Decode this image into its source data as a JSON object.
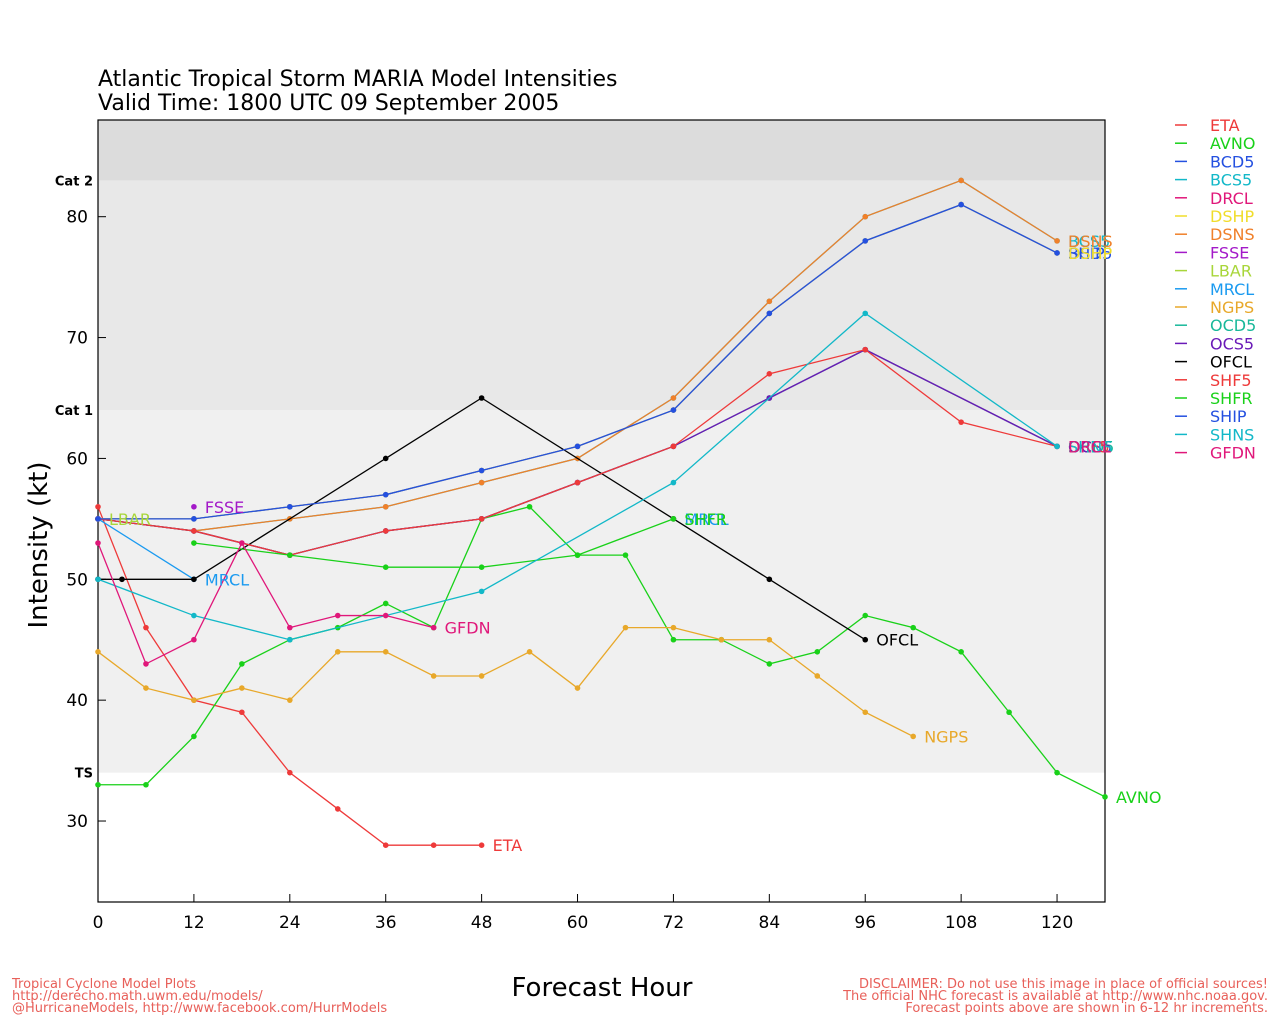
{
  "chart_data": {
    "type": "line",
    "title": [
      "Atlantic Tropical Storm MARIA Model Intensities",
      "Valid Time: 1800 UTC 09 September 2005"
    ],
    "xlabel": "Forecast Hour",
    "ylabel": "Intensity (kt)",
    "xlim": [
      0,
      126
    ],
    "ylim": [
      23.3,
      88
    ],
    "xticks": [
      0,
      12,
      24,
      36,
      48,
      60,
      72,
      84,
      96,
      108,
      120
    ],
    "yticks": [
      30,
      40,
      50,
      60,
      70,
      80
    ],
    "bands": [
      {
        "label": "TS",
        "from": 34,
        "to": 64,
        "color": "#f0f0f0"
      },
      {
        "label": "Cat 1",
        "from": 64,
        "to": 83,
        "color": "#e8e8e8"
      },
      {
        "label": "Cat 2",
        "from": 83,
        "to": 88,
        "color": "#dcdcdc"
      }
    ],
    "legend_position": "right",
    "series": [
      {
        "name": "ETA",
        "color": "#ee3a3a",
        "end_label": "ETA",
        "points": [
          [
            0,
            56
          ],
          [
            6,
            46
          ],
          [
            12,
            40
          ],
          [
            18,
            39
          ],
          [
            24,
            34
          ],
          [
            30,
            31
          ],
          [
            36,
            28
          ],
          [
            42,
            28
          ],
          [
            48,
            28
          ]
        ]
      },
      {
        "name": "AVNO",
        "color": "#19d119",
        "end_label": "AVNO",
        "points": [
          [
            0,
            33
          ],
          [
            6,
            33
          ],
          [
            12,
            37
          ],
          [
            18,
            43
          ],
          [
            24,
            45
          ],
          [
            30,
            46
          ],
          [
            36,
            48
          ],
          [
            42,
            46
          ],
          [
            48,
            55
          ],
          [
            54,
            56
          ],
          [
            60,
            52
          ],
          [
            66,
            52
          ],
          [
            72,
            45
          ],
          [
            78,
            45
          ],
          [
            84,
            43
          ],
          [
            90,
            44
          ],
          [
            96,
            47
          ],
          [
            102,
            46
          ],
          [
            108,
            44
          ],
          [
            114,
            39
          ],
          [
            120,
            34
          ],
          [
            126,
            32
          ]
        ]
      },
      {
        "name": "BCD5",
        "color": "#2450e0",
        "end_label": "BCD5",
        "points": [
          [
            0,
            55
          ],
          [
            12,
            55
          ],
          [
            24,
            56
          ],
          [
            36,
            57
          ],
          [
            48,
            59
          ],
          [
            60,
            61
          ],
          [
            72,
            64
          ],
          [
            84,
            72
          ],
          [
            96,
            78
          ],
          [
            108,
            81
          ],
          [
            120,
            77
          ]
        ]
      },
      {
        "name": "BCS5",
        "color": "#12b8c8",
        "end_label": "BCS5",
        "points": [
          [
            0,
            55
          ],
          [
            12,
            54
          ],
          [
            24,
            55
          ],
          [
            36,
            56
          ],
          [
            48,
            58
          ],
          [
            60,
            60
          ],
          [
            72,
            65
          ],
          [
            84,
            73
          ],
          [
            96,
            80
          ],
          [
            108,
            83
          ],
          [
            120,
            78
          ]
        ]
      },
      {
        "name": "DRCL",
        "color": "#e0177a",
        "end_label": "DRCL",
        "points": [
          [
            0,
            55
          ],
          [
            12,
            54
          ],
          [
            24,
            52
          ],
          [
            36,
            54
          ],
          [
            48,
            55
          ],
          [
            60,
            58
          ],
          [
            72,
            61
          ],
          [
            84,
            65
          ],
          [
            96,
            69
          ],
          [
            120,
            61
          ]
        ]
      },
      {
        "name": "DSHP",
        "color": "#f0dd2a",
        "end_label": "DSHP",
        "points": [
          [
            0,
            55
          ],
          [
            12,
            55
          ],
          [
            24,
            56
          ],
          [
            36,
            57
          ],
          [
            48,
            59
          ],
          [
            60,
            61
          ],
          [
            72,
            64
          ],
          [
            84,
            72
          ],
          [
            96,
            78
          ],
          [
            108,
            81
          ],
          [
            120,
            77
          ]
        ]
      },
      {
        "name": "DSNS",
        "color": "#f0802a",
        "end_label": "DSNS",
        "points": [
          [
            0,
            55
          ],
          [
            12,
            54
          ],
          [
            24,
            55
          ],
          [
            36,
            56
          ],
          [
            48,
            58
          ],
          [
            60,
            60
          ],
          [
            72,
            65
          ],
          [
            84,
            73
          ],
          [
            96,
            80
          ],
          [
            108,
            83
          ],
          [
            120,
            78
          ]
        ]
      },
      {
        "name": "FSSE",
        "color": "#a319c8",
        "end_label": "FSSE",
        "points": [
          [
            12,
            56
          ]
        ]
      },
      {
        "name": "LBAR",
        "color": "#a8d63a",
        "end_label": "LBAR",
        "points": [
          [
            0,
            55
          ]
        ]
      },
      {
        "name": "MRCL",
        "color": "#1a9af0",
        "end_label": "MRCL",
        "points": [
          [
            0,
            55
          ],
          [
            12,
            50
          ]
        ]
      },
      {
        "name": "NGPS",
        "color": "#e8a82a",
        "end_label": "NGPS",
        "points": [
          [
            0,
            44
          ],
          [
            6,
            41
          ],
          [
            12,
            40
          ],
          [
            18,
            41
          ],
          [
            24,
            40
          ],
          [
            30,
            44
          ],
          [
            36,
            44
          ],
          [
            42,
            42
          ],
          [
            48,
            42
          ],
          [
            54,
            44
          ],
          [
            60,
            41
          ],
          [
            66,
            46
          ],
          [
            72,
            46
          ],
          [
            78,
            45
          ],
          [
            84,
            45
          ],
          [
            90,
            42
          ],
          [
            96,
            39
          ],
          [
            102,
            37
          ]
        ]
      },
      {
        "name": "OCD5",
        "color": "#18b89a",
        "end_label": "OCD5",
        "points": [
          [
            0,
            55
          ],
          [
            12,
            54
          ],
          [
            24,
            52
          ],
          [
            36,
            54
          ],
          [
            48,
            55
          ],
          [
            60,
            58
          ],
          [
            72,
            61
          ],
          [
            84,
            65
          ],
          [
            96,
            69
          ],
          [
            120,
            61
          ]
        ]
      },
      {
        "name": "OCS5",
        "color": "#6a1ab8",
        "end_label": "OCS5",
        "points": [
          [
            0,
            55
          ],
          [
            12,
            54
          ],
          [
            24,
            52
          ],
          [
            36,
            54
          ],
          [
            48,
            55
          ],
          [
            60,
            58
          ],
          [
            72,
            61
          ],
          [
            84,
            65
          ],
          [
            96,
            69
          ],
          [
            120,
            61
          ]
        ]
      },
      {
        "name": "OFCL",
        "color": "#000000",
        "end_label": "OFCL",
        "points": [
          [
            0,
            50
          ],
          [
            3,
            50
          ],
          [
            12,
            50
          ],
          [
            36,
            60
          ],
          [
            48,
            65
          ],
          [
            72,
            55
          ],
          [
            84,
            50
          ],
          [
            96,
            45
          ]
        ]
      },
      {
        "name": "SHF5",
        "color": "#ee3a3a",
        "end_label": "SHF5",
        "points": [
          [
            0,
            55
          ],
          [
            12,
            54
          ],
          [
            24,
            52
          ],
          [
            36,
            54
          ],
          [
            48,
            55
          ],
          [
            60,
            58
          ],
          [
            72,
            61
          ],
          [
            84,
            67
          ],
          [
            96,
            69
          ],
          [
            108,
            63
          ],
          [
            120,
            61
          ]
        ]
      },
      {
        "name": "SHFR",
        "color": "#19d119",
        "end_label": "SHFR",
        "points": [
          [
            12,
            53
          ],
          [
            24,
            52
          ],
          [
            36,
            51
          ],
          [
            48,
            51
          ],
          [
            60,
            52
          ],
          [
            72,
            55
          ]
        ]
      },
      {
        "name": "SHIP",
        "color": "#2450e0",
        "end_label": "SHIP",
        "points": [
          [
            0,
            55
          ],
          [
            12,
            55
          ],
          [
            24,
            56
          ],
          [
            36,
            57
          ],
          [
            48,
            59
          ],
          [
            60,
            61
          ],
          [
            72,
            64
          ],
          [
            84,
            72
          ],
          [
            96,
            78
          ],
          [
            108,
            81
          ],
          [
            120,
            77
          ]
        ]
      },
      {
        "name": "SHNS",
        "color": "#12b8c8",
        "end_label": "SHNS",
        "points": [
          [
            0,
            50
          ],
          [
            12,
            47
          ],
          [
            24,
            45
          ],
          [
            48,
            49
          ],
          [
            72,
            58
          ],
          [
            96,
            72
          ],
          [
            120,
            61
          ]
        ]
      },
      {
        "name": "GFDN",
        "color": "#e0177a",
        "end_label": "GFDN",
        "points": [
          [
            0,
            53
          ],
          [
            6,
            43
          ],
          [
            12,
            45
          ],
          [
            18,
            53
          ],
          [
            24,
            46
          ],
          [
            30,
            47
          ],
          [
            36,
            47
          ],
          [
            42,
            46
          ]
        ]
      }
    ],
    "extra_series_labels": [
      {
        "text": "DRCL",
        "color": "#e0177a",
        "x": 120,
        "y": 61
      },
      {
        "text": "DSHP",
        "color": "#f0dd2a",
        "x": 120,
        "y": 77
      },
      {
        "text": "MRCL",
        "color": "#1a9af0",
        "x": 72,
        "y": 55
      },
      {
        "text": "SHFR",
        "color": "#19d119",
        "x": 72,
        "y": 55
      }
    ]
  },
  "footer": {
    "left_lines": [
      "Tropical Cyclone Model Plots",
      "http://derecho.math.uwm.edu/models/",
      "@HurricaneModels, http://www.facebook.com/HurrModels"
    ],
    "right_lines": [
      "DISCLAIMER: Do not use this image in place of official sources!",
      "The official NHC forecast is available at http://www.nhc.noaa.gov.",
      "Forecast points above are shown in 6-12 hr increments."
    ]
  }
}
